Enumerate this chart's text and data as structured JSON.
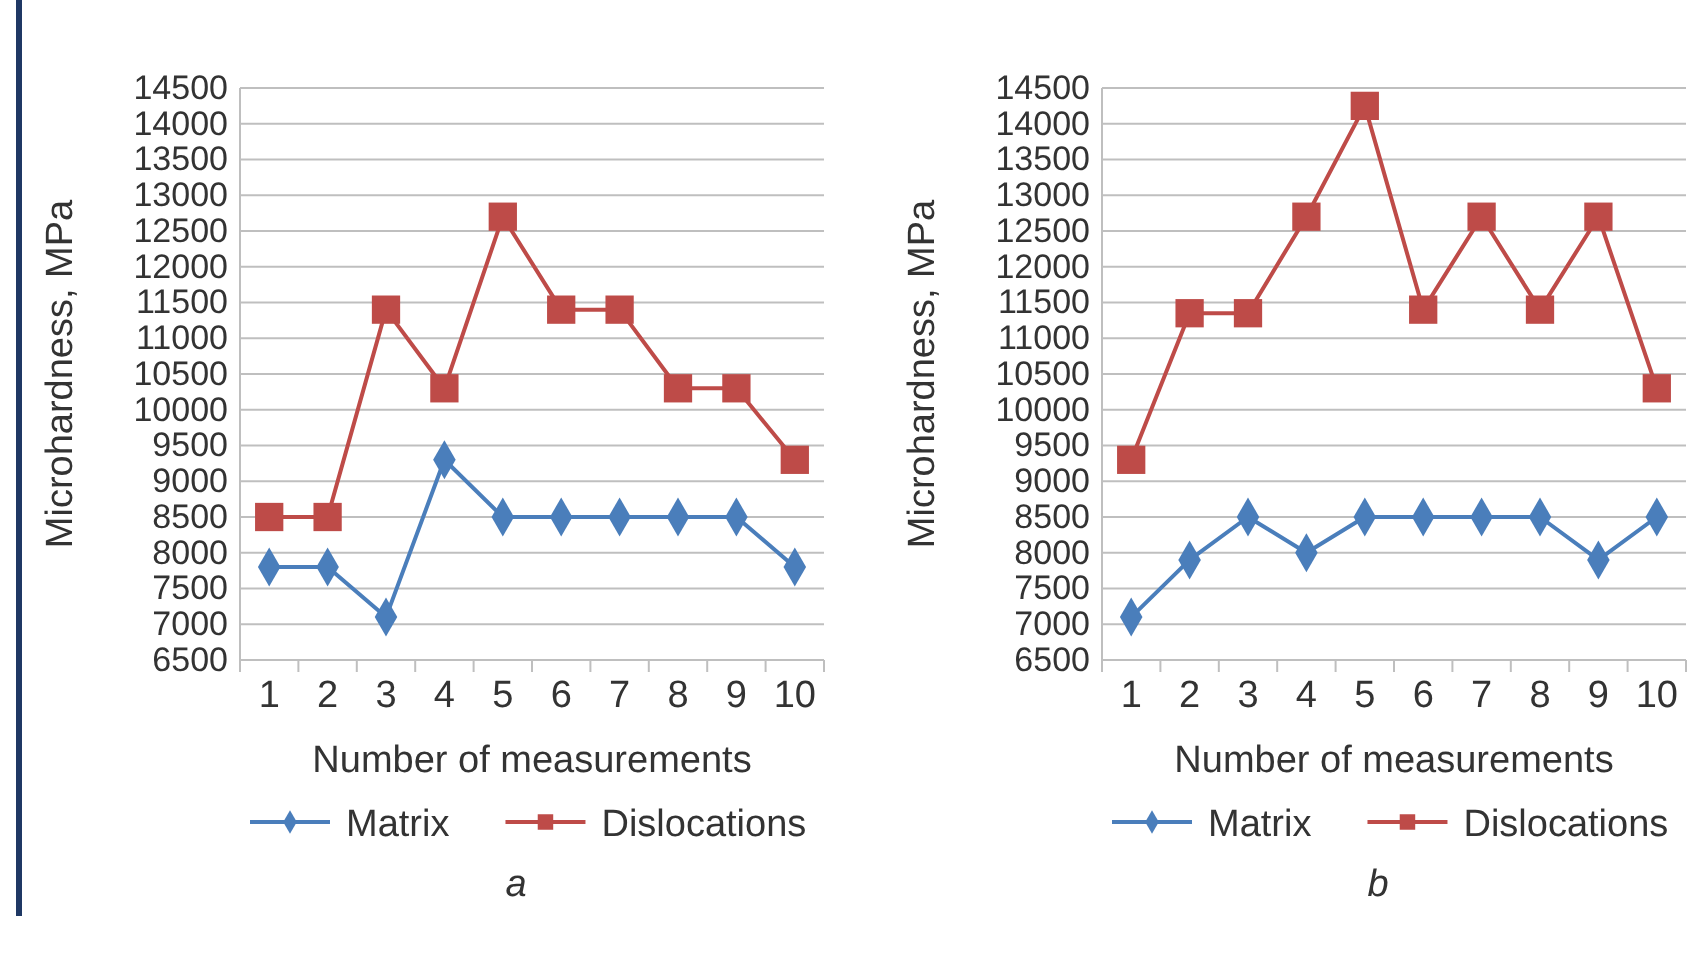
{
  "chart_data": [
    {
      "type": "line",
      "xlabel": "Number of measurements",
      "ylabel": "Microhardness, MPa",
      "categories": [
        "1",
        "2",
        "3",
        "4",
        "5",
        "6",
        "7",
        "8",
        "9",
        "10"
      ],
      "ylim": [
        6500,
        14500
      ],
      "yticks": [
        6500,
        7000,
        7500,
        8000,
        8500,
        9000,
        9500,
        10000,
        10500,
        11000,
        11500,
        12000,
        12500,
        13000,
        13500,
        14000,
        14500
      ],
      "grid": "y",
      "legend": "bottom",
      "annotations": [
        "a"
      ],
      "series": [
        {
          "name": "Matrix",
          "color": "#4a7ebb",
          "marker": "diamond",
          "values": [
            7800,
            7800,
            7100,
            9300,
            8500,
            8500,
            8500,
            8500,
            8500,
            7800
          ]
        },
        {
          "name": "Dislocations",
          "color": "#be4b48",
          "marker": "square",
          "values": [
            8500,
            8500,
            11400,
            10300,
            12700,
            11400,
            11400,
            10300,
            10300,
            9300
          ]
        }
      ]
    },
    {
      "type": "line",
      "xlabel": "Number of measurements",
      "ylabel": "Microhardness, MPa",
      "categories": [
        "1",
        "2",
        "3",
        "4",
        "5",
        "6",
        "7",
        "8",
        "9",
        "10"
      ],
      "ylim": [
        6500,
        14500
      ],
      "yticks": [
        6500,
        7000,
        7500,
        8000,
        8500,
        9000,
        9500,
        10000,
        10500,
        11000,
        11500,
        12000,
        12500,
        13000,
        13500,
        14000,
        14500
      ],
      "grid": "y",
      "legend": "bottom",
      "annotations": [
        "b"
      ],
      "series": [
        {
          "name": "Matrix",
          "color": "#4a7ebb",
          "marker": "diamond",
          "values": [
            7100,
            7900,
            8500,
            8000,
            8500,
            8500,
            8500,
            8500,
            7900,
            8500
          ]
        },
        {
          "name": "Dislocations",
          "color": "#be4b48",
          "marker": "square",
          "values": [
            9300,
            11350,
            11350,
            12700,
            14250,
            11400,
            12700,
            11400,
            12700,
            10300
          ]
        }
      ]
    }
  ]
}
